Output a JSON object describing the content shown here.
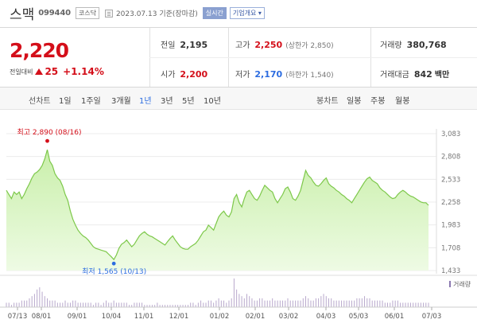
{
  "header": {
    "name": "스맥",
    "code": "099440",
    "market": "코스닥",
    "date_text": "2023.07.13  기준(장마감)",
    "realtime_label": "실시간",
    "company_info_label": "기업개요 ▾"
  },
  "price": {
    "current": "2,220",
    "change_label": "전일대비",
    "change_value": "25",
    "change_pct": "+1.14%"
  },
  "stats": {
    "prev_close": {
      "label": "전일",
      "value": "2,195"
    },
    "open": {
      "label": "시가",
      "value": "2,200"
    },
    "high": {
      "label": "고가",
      "value": "2,250",
      "sub": "(상한가 2,850)"
    },
    "low": {
      "label": "저가",
      "value": "2,170",
      "sub": "(하한가 1,540)"
    },
    "volume": {
      "label": "거래량",
      "value": "380,768"
    },
    "amount": {
      "label": "거래대금",
      "value": "842",
      "unit": "백만"
    }
  },
  "toolbar": {
    "line_chart_label": "선차트",
    "periods": [
      "1일",
      "1주일",
      "3개월",
      "1년",
      "3년",
      "5년",
      "10년"
    ],
    "active_period": "1년",
    "candle_label": "봉차트",
    "candle_periods": [
      "일봉",
      "주봉",
      "월봉"
    ]
  },
  "chart_data": {
    "type": "area",
    "y_ticks": [
      "3,083",
      "2,808",
      "2,533",
      "2,258",
      "1,983",
      "1,708",
      "1,433"
    ],
    "ylim": [
      1433,
      3083
    ],
    "x_ticks": [
      "07/13",
      "08/01",
      "09/01",
      "10/04",
      "11/01",
      "12/01",
      "01/02",
      "02/01",
      "03/02",
      "04/03",
      "05/03",
      "06/01",
      "07/03"
    ],
    "max_annotation": "최고 2,890 (08/16)",
    "min_annotation": "최저 1,565 (10/13)",
    "volume_legend": "거래량",
    "colors": {
      "line": "#7dc84a",
      "fill_top": "#c9efaa",
      "fill_bottom": "#eefbe4",
      "max": "#d40f1a",
      "min": "#2c6ce0"
    },
    "series": [
      {
        "values": [
          2400,
          2350,
          2300,
          2380,
          2350,
          2380,
          2300,
          2350,
          2420,
          2480,
          2550,
          2600,
          2620,
          2650,
          2700,
          2780,
          2890,
          2750,
          2700,
          2600,
          2550,
          2520,
          2450,
          2350,
          2280,
          2150,
          2050,
          1980,
          1920,
          1880,
          1850,
          1830,
          1800,
          1760,
          1720,
          1700,
          1690,
          1680,
          1670,
          1660,
          1630,
          1600,
          1565,
          1620,
          1700,
          1750,
          1770,
          1800,
          1760,
          1720,
          1750,
          1800,
          1850,
          1880,
          1900,
          1870,
          1850,
          1840,
          1820,
          1800,
          1780,
          1760,
          1740,
          1780,
          1820,
          1850,
          1800,
          1760,
          1720,
          1700,
          1690,
          1690,
          1720,
          1740,
          1760,
          1800,
          1850,
          1900,
          1920,
          1980,
          1950,
          1920,
          2000,
          2080,
          2120,
          2150,
          2100,
          2080,
          2140,
          2300,
          2350,
          2250,
          2200,
          2300,
          2380,
          2400,
          2350,
          2300,
          2280,
          2330,
          2400,
          2460,
          2430,
          2400,
          2380,
          2300,
          2250,
          2300,
          2350,
          2420,
          2440,
          2380,
          2300,
          2280,
          2330,
          2400,
          2520,
          2640,
          2580,
          2550,
          2500,
          2460,
          2450,
          2480,
          2520,
          2550,
          2480,
          2450,
          2430,
          2400,
          2380,
          2350,
          2330,
          2300,
          2280,
          2250,
          2300,
          2350,
          2400,
          2450,
          2500,
          2540,
          2560,
          2520,
          2500,
          2480,
          2430,
          2400,
          2380,
          2350,
          2320,
          2300,
          2310,
          2350,
          2380,
          2400,
          2380,
          2350,
          2330,
          2320,
          2300,
          2280,
          2260,
          2250,
          2250,
          2220
        ]
      }
    ],
    "volume": [
      2,
      2,
      1,
      2,
      2,
      2,
      3,
      3,
      3,
      4,
      5,
      6,
      8,
      9,
      7,
      5,
      4,
      3,
      3,
      3,
      2,
      2,
      2,
      3,
      2,
      2,
      3,
      3,
      2,
      2,
      2,
      2,
      2,
      2,
      1,
      2,
      2,
      1,
      2,
      3,
      2,
      2,
      3,
      2,
      2,
      2,
      2,
      2,
      1,
      1,
      2,
      2,
      2,
      2,
      1,
      1,
      1,
      1,
      1,
      2,
      1,
      1,
      1,
      1,
      1,
      1,
      1,
      1,
      1,
      1,
      1,
      1,
      2,
      2,
      1,
      2,
      3,
      2,
      2,
      3,
      3,
      2,
      3,
      4,
      3,
      3,
      2,
      3,
      4,
      13,
      8,
      6,
      5,
      4,
      6,
      5,
      4,
      3,
      3,
      4,
      4,
      3,
      3,
      3,
      4,
      3,
      3,
      3,
      3,
      3,
      4,
      3,
      3,
      3,
      3,
      3,
      4,
      5,
      4,
      3,
      3,
      4,
      4,
      5,
      6,
      5,
      4,
      4,
      3,
      3,
      3,
      3,
      3,
      3,
      3,
      3,
      3,
      4,
      4,
      4,
      5,
      4,
      4,
      3,
      3,
      3,
      3,
      3,
      2,
      2,
      2,
      3,
      3,
      3,
      2,
      2,
      2,
      2,
      2,
      2,
      2,
      2,
      2,
      2,
      2,
      2
    ]
  }
}
